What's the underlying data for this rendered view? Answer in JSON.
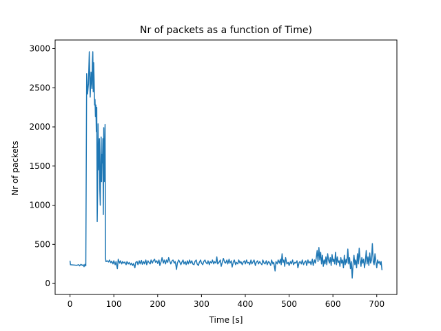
{
  "chart_data": {
    "type": "line",
    "title": "Nr of packets as a function of Time)",
    "xlabel": "Time [s]",
    "ylabel": "Nr of packets",
    "xlim": [
      -34,
      746
    ],
    "ylim": [
      -140,
      3110
    ],
    "xticks": [
      0,
      100,
      200,
      300,
      400,
      500,
      600,
      700
    ],
    "yticks": [
      0,
      500,
      1000,
      1500,
      2000,
      2500,
      3000
    ],
    "grid": false,
    "series": [
      {
        "color": "#1f77b4",
        "points": [
          [
            0,
            290
          ],
          [
            1,
            240
          ],
          [
            5,
            238
          ],
          [
            10,
            235
          ],
          [
            15,
            232
          ],
          [
            20,
            240
          ],
          [
            22,
            225
          ],
          [
            25,
            245
          ],
          [
            28,
            230
          ],
          [
            30,
            240
          ],
          [
            32,
            215
          ],
          [
            34,
            245
          ],
          [
            36,
            225
          ],
          [
            38,
            2680
          ],
          [
            40,
            2420
          ],
          [
            42,
            2550
          ],
          [
            44,
            2960
          ],
          [
            46,
            2380
          ],
          [
            48,
            2700
          ],
          [
            50,
            2490
          ],
          [
            51,
            2830
          ],
          [
            52,
            2960
          ],
          [
            53,
            2450
          ],
          [
            54,
            2820
          ],
          [
            55,
            2600
          ],
          [
            56,
            2280
          ],
          [
            57,
            2350
          ],
          [
            58,
            2130
          ],
          [
            59,
            2280
          ],
          [
            60,
            1940
          ],
          [
            61,
            2250
          ],
          [
            62,
            790
          ],
          [
            63,
            1200
          ],
          [
            64,
            2040
          ],
          [
            65,
            1450
          ],
          [
            66,
            1650
          ],
          [
            67,
            1850
          ],
          [
            68,
            1200
          ],
          [
            69,
            1000
          ],
          [
            70,
            1560
          ],
          [
            71,
            1870
          ],
          [
            72,
            1300
          ],
          [
            73,
            1650
          ],
          [
            74,
            1540
          ],
          [
            75,
            1850
          ],
          [
            76,
            880
          ],
          [
            77,
            1990
          ],
          [
            78,
            1300
          ],
          [
            79,
            1600
          ],
          [
            80,
            2030
          ],
          [
            81,
            320
          ],
          [
            82,
            280
          ],
          [
            85,
            290
          ],
          [
            88,
            275
          ],
          [
            90,
            300
          ],
          [
            93,
            265
          ],
          [
            95,
            285
          ],
          [
            98,
            250
          ],
          [
            100,
            290
          ],
          [
            103,
            240
          ],
          [
            105,
            280
          ],
          [
            108,
            190
          ],
          [
            110,
            310
          ],
          [
            113,
            260
          ],
          [
            115,
            290
          ],
          [
            118,
            250
          ],
          [
            120,
            280
          ],
          [
            123,
            260
          ],
          [
            125,
            275
          ],
          [
            128,
            240
          ],
          [
            130,
            280
          ],
          [
            133,
            250
          ],
          [
            135,
            270
          ],
          [
            138,
            240
          ],
          [
            140,
            260
          ],
          [
            143,
            230
          ],
          [
            145,
            255
          ],
          [
            148,
            200
          ],
          [
            150,
            270
          ],
          [
            153,
            280
          ],
          [
            155,
            240
          ],
          [
            158,
            290
          ],
          [
            160,
            250
          ],
          [
            163,
            295
          ],
          [
            165,
            245
          ],
          [
            168,
            280
          ],
          [
            170,
            250
          ],
          [
            173,
            300
          ],
          [
            175,
            240
          ],
          [
            178,
            290
          ],
          [
            180,
            270
          ],
          [
            183,
            250
          ],
          [
            185,
            300
          ],
          [
            188,
            260
          ],
          [
            190,
            290
          ],
          [
            193,
            310
          ],
          [
            195,
            270
          ],
          [
            198,
            290
          ],
          [
            200,
            255
          ],
          [
            203,
            300
          ],
          [
            205,
            230
          ],
          [
            208,
            280
          ],
          [
            210,
            330
          ],
          [
            213,
            260
          ],
          [
            215,
            300
          ],
          [
            218,
            250
          ],
          [
            220,
            300
          ],
          [
            223,
            270
          ],
          [
            225,
            330
          ],
          [
            228,
            280
          ],
          [
            230,
            250
          ],
          [
            233,
            290
          ],
          [
            235,
            300
          ],
          [
            238,
            260
          ],
          [
            240,
            280
          ],
          [
            242,
            220
          ],
          [
            243,
            180
          ],
          [
            245,
            260
          ],
          [
            248,
            300
          ],
          [
            250,
            280
          ],
          [
            253,
            240
          ],
          [
            255,
            270
          ],
          [
            258,
            300
          ],
          [
            260,
            250
          ],
          [
            263,
            280
          ],
          [
            265,
            240
          ],
          [
            268,
            290
          ],
          [
            270,
            250
          ],
          [
            273,
            300
          ],
          [
            275,
            260
          ],
          [
            278,
            290
          ],
          [
            280,
            250
          ],
          [
            283,
            240
          ],
          [
            285,
            280
          ],
          [
            288,
            300
          ],
          [
            290,
            250
          ],
          [
            293,
            230
          ],
          [
            295,
            270
          ],
          [
            298,
            300
          ],
          [
            300,
            260
          ],
          [
            303,
            240
          ],
          [
            305,
            280
          ],
          [
            308,
            300
          ],
          [
            310,
            270
          ],
          [
            313,
            250
          ],
          [
            315,
            290
          ],
          [
            318,
            240
          ],
          [
            320,
            280
          ],
          [
            323,
            260
          ],
          [
            325,
            300
          ],
          [
            328,
            250
          ],
          [
            330,
            280
          ],
          [
            333,
            260
          ],
          [
            335,
            340
          ],
          [
            337,
            250
          ],
          [
            340,
            270
          ],
          [
            343,
            300
          ],
          [
            345,
            220
          ],
          [
            348,
            280
          ],
          [
            350,
            320
          ],
          [
            353,
            270
          ],
          [
            355,
            260
          ],
          [
            358,
            300
          ],
          [
            360,
            250
          ],
          [
            363,
            310
          ],
          [
            365,
            260
          ],
          [
            368,
            290
          ],
          [
            370,
            210
          ],
          [
            373,
            280
          ],
          [
            375,
            300
          ],
          [
            378,
            240
          ],
          [
            380,
            270
          ],
          [
            383,
            250
          ],
          [
            385,
            300
          ],
          [
            388,
            260
          ],
          [
            390,
            280
          ],
          [
            393,
            240
          ],
          [
            395,
            270
          ],
          [
            398,
            290
          ],
          [
            400,
            250
          ],
          [
            403,
            300
          ],
          [
            405,
            260
          ],
          [
            408,
            270
          ],
          [
            410,
            240
          ],
          [
            413,
            300
          ],
          [
            415,
            250
          ],
          [
            418,
            280
          ],
          [
            420,
            300
          ],
          [
            423,
            230
          ],
          [
            425,
            270
          ],
          [
            428,
            290
          ],
          [
            430,
            250
          ],
          [
            433,
            280
          ],
          [
            435,
            260
          ],
          [
            438,
            240
          ],
          [
            440,
            300
          ],
          [
            443,
            260
          ],
          [
            445,
            250
          ],
          [
            448,
            290
          ],
          [
            450,
            240
          ],
          [
            453,
            280
          ],
          [
            455,
            270
          ],
          [
            458,
            230
          ],
          [
            460,
            300
          ],
          [
            463,
            250
          ],
          [
            465,
            270
          ],
          [
            468,
            160
          ],
          [
            470,
            280
          ],
          [
            473,
            250
          ],
          [
            475,
            300
          ],
          [
            478,
            260
          ],
          [
            480,
            310
          ],
          [
            482,
            240
          ],
          [
            484,
            380
          ],
          [
            486,
            270
          ],
          [
            488,
            300
          ],
          [
            490,
            220
          ],
          [
            492,
            330
          ],
          [
            495,
            250
          ],
          [
            498,
            270
          ],
          [
            500,
            230
          ],
          [
            503,
            280
          ],
          [
            505,
            250
          ],
          [
            508,
            300
          ],
          [
            510,
            240
          ],
          [
            513,
            270
          ],
          [
            515,
            260
          ],
          [
            518,
            290
          ],
          [
            520,
            200
          ],
          [
            523,
            270
          ],
          [
            525,
            280
          ],
          [
            528,
            250
          ],
          [
            530,
            300
          ],
          [
            533,
            240
          ],
          [
            535,
            270
          ],
          [
            538,
            290
          ],
          [
            540,
            230
          ],
          [
            543,
            300
          ],
          [
            545,
            260
          ],
          [
            548,
            280
          ],
          [
            550,
            240
          ],
          [
            553,
            310
          ],
          [
            555,
            230
          ],
          [
            558,
            300
          ],
          [
            560,
            260
          ],
          [
            562,
            330
          ],
          [
            564,
            420
          ],
          [
            566,
            280
          ],
          [
            568,
            460
          ],
          [
            570,
            300
          ],
          [
            572,
            400
          ],
          [
            574,
            250
          ],
          [
            576,
            360
          ],
          [
            578,
            220
          ],
          [
            580,
            300
          ],
          [
            582,
            250
          ],
          [
            584,
            340
          ],
          [
            586,
            240
          ],
          [
            588,
            380
          ],
          [
            590,
            300
          ],
          [
            592,
            260
          ],
          [
            594,
            330
          ],
          [
            596,
            230
          ],
          [
            598,
            370
          ],
          [
            600,
            280
          ],
          [
            602,
            310
          ],
          [
            604,
            250
          ],
          [
            606,
            400
          ],
          [
            608,
            240
          ],
          [
            610,
            340
          ],
          [
            612,
            270
          ],
          [
            614,
            290
          ],
          [
            616,
            220
          ],
          [
            618,
            330
          ],
          [
            620,
            260
          ],
          [
            622,
            300
          ],
          [
            624,
            200
          ],
          [
            626,
            360
          ],
          [
            628,
            240
          ],
          [
            630,
            310
          ],
          [
            632,
            260
          ],
          [
            634,
            440
          ],
          [
            636,
            250
          ],
          [
            638,
            330
          ],
          [
            640,
            190
          ],
          [
            642,
            280
          ],
          [
            644,
            70
          ],
          [
            646,
            250
          ],
          [
            648,
            360
          ],
          [
            650,
            240
          ],
          [
            652,
            300
          ],
          [
            654,
            200
          ],
          [
            656,
            380
          ],
          [
            658,
            250
          ],
          [
            660,
            450
          ],
          [
            662,
            300
          ],
          [
            664,
            220
          ],
          [
            666,
            330
          ],
          [
            668,
            260
          ],
          [
            670,
            310
          ],
          [
            672,
            200
          ],
          [
            674,
            280
          ],
          [
            676,
            420
          ],
          [
            678,
            250
          ],
          [
            680,
            340
          ],
          [
            682,
            230
          ],
          [
            684,
            390
          ],
          [
            686,
            260
          ],
          [
            688,
            300
          ],
          [
            690,
            510
          ],
          [
            692,
            280
          ],
          [
            694,
            240
          ],
          [
            696,
            380
          ],
          [
            698,
            280
          ],
          [
            700,
            200
          ],
          [
            702,
            300
          ],
          [
            704,
            260
          ],
          [
            706,
            280
          ],
          [
            708,
            240
          ],
          [
            710,
            280
          ],
          [
            712,
            170
          ]
        ]
      }
    ]
  }
}
